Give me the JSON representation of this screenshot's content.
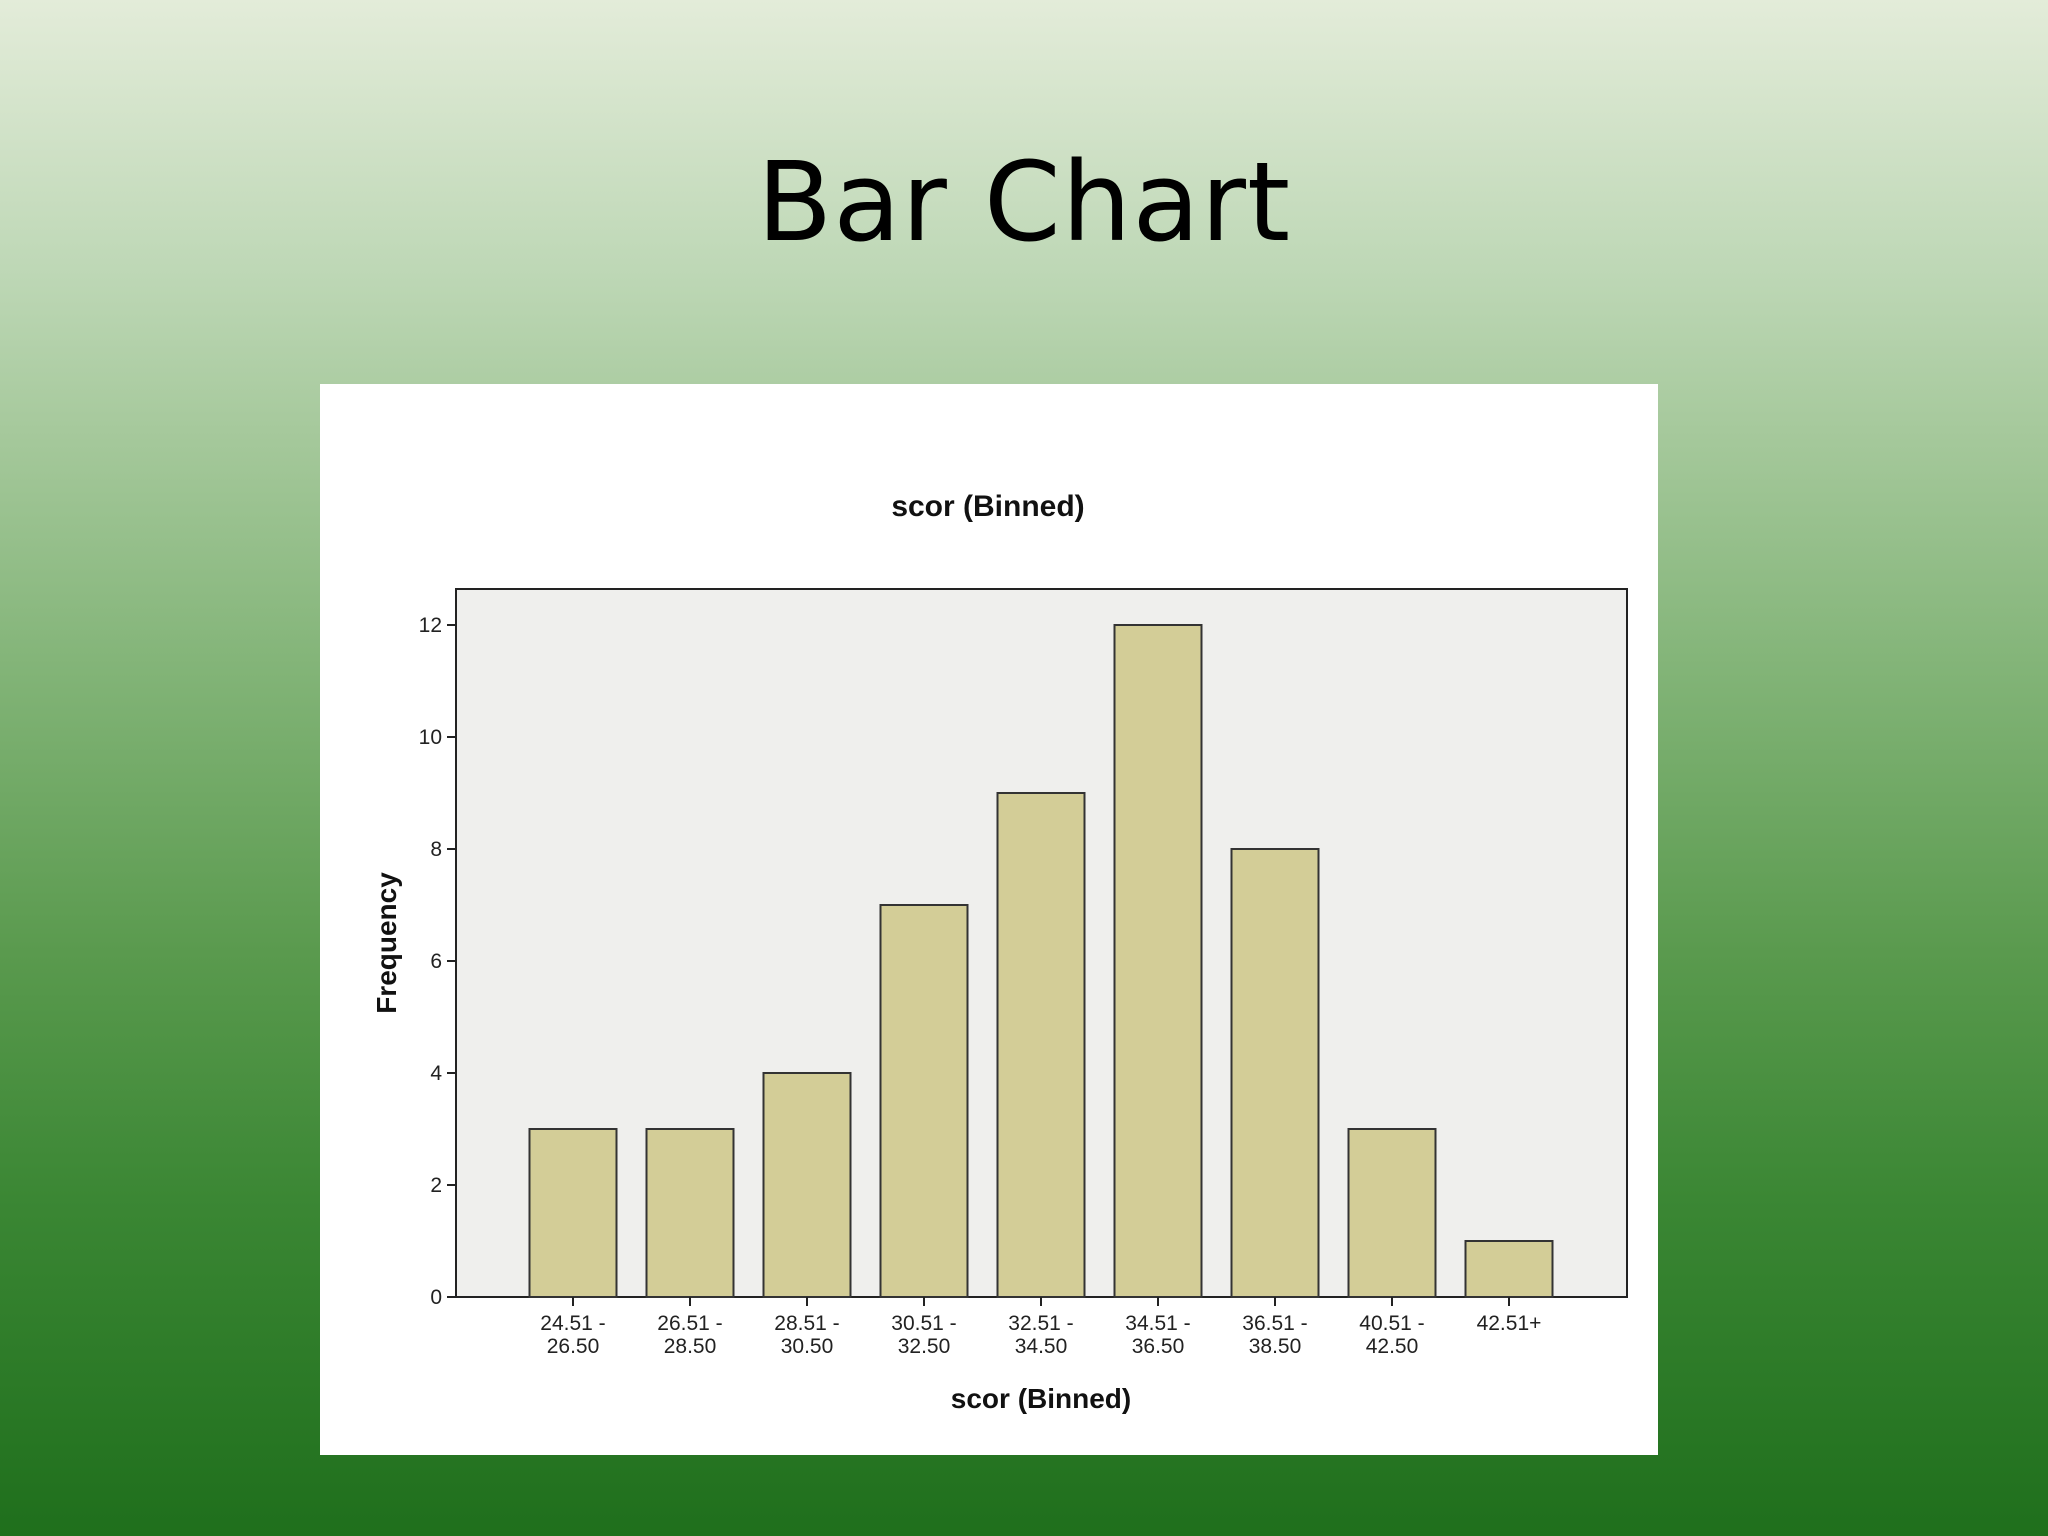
{
  "slide": {
    "title": "Bar Chart"
  },
  "chart_data": {
    "type": "bar",
    "title": "scor (Binned)",
    "xlabel": "scor (Binned)",
    "ylabel": "Frequency",
    "categories": [
      [
        "24.51 -",
        "26.50"
      ],
      [
        "26.51 -",
        "28.50"
      ],
      [
        "28.51 -",
        "30.50"
      ],
      [
        "30.51 -",
        "32.50"
      ],
      [
        "32.51 -",
        "34.50"
      ],
      [
        "34.51 -",
        "36.50"
      ],
      [
        "36.51 -",
        "38.50"
      ],
      [
        "40.51 -",
        "42.50"
      ],
      [
        "42.51+"
      ]
    ],
    "values": [
      3,
      3,
      4,
      7,
      9,
      12,
      8,
      3,
      1
    ],
    "yticks": [
      0,
      2,
      4,
      6,
      8,
      10,
      12
    ],
    "ylim": [
      0,
      12.65
    ],
    "grid": false,
    "colors": {
      "bar_fill": "#d3cd97",
      "bar_stroke": "#333333",
      "plot_background": "#efefed",
      "panel_background": "#ffffff"
    }
  }
}
